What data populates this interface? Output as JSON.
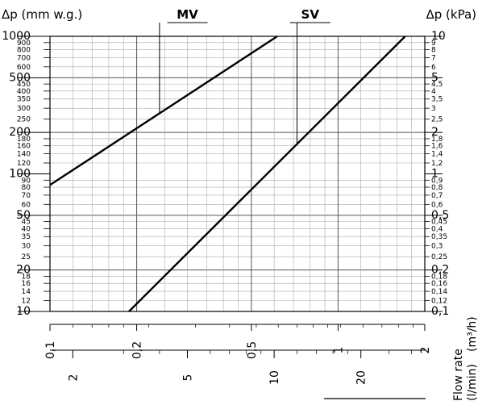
{
  "chart_data": {
    "type": "line",
    "y_left_label": "Δp (mm w.g.)",
    "y_right_label": "Δp (kPa)",
    "x_label": "Flow rate",
    "x_unit_top": "(m³/h)",
    "x_unit_bottom": "(l/min)",
    "y_scale": "log",
    "x_scale": "log",
    "y_left_range": [
      10,
      1000
    ],
    "y_right_range": [
      0.1,
      10
    ],
    "x_range_m3h": [
      0.1,
      2
    ],
    "grid": true,
    "y_left_major_ticks": [
      {
        "v": 1000,
        "t": "1000"
      },
      {
        "v": 500,
        "t": "500"
      },
      {
        "v": 200,
        "t": "200"
      },
      {
        "v": 100,
        "t": "100"
      },
      {
        "v": 50,
        "t": "50"
      },
      {
        "v": 20,
        "t": "20"
      },
      {
        "v": 10,
        "t": "10"
      }
    ],
    "y_left_minor_ticks": [
      {
        "v": 900,
        "t": "900"
      },
      {
        "v": 800,
        "t": "800"
      },
      {
        "v": 700,
        "t": "700"
      },
      {
        "v": 600,
        "t": "600"
      },
      {
        "v": 450,
        "t": "450"
      },
      {
        "v": 400,
        "t": "400"
      },
      {
        "v": 350,
        "t": "350"
      },
      {
        "v": 300,
        "t": "300"
      },
      {
        "v": 250,
        "t": "250"
      },
      {
        "v": 180,
        "t": "180"
      },
      {
        "v": 160,
        "t": "160"
      },
      {
        "v": 140,
        "t": "140"
      },
      {
        "v": 120,
        "t": "120"
      },
      {
        "v": 90,
        "t": "90"
      },
      {
        "v": 80,
        "t": "80"
      },
      {
        "v": 70,
        "t": "70"
      },
      {
        "v": 60,
        "t": "60"
      },
      {
        "v": 45,
        "t": "45"
      },
      {
        "v": 40,
        "t": "40"
      },
      {
        "v": 35,
        "t": "35"
      },
      {
        "v": 30,
        "t": "30"
      },
      {
        "v": 25,
        "t": "25"
      },
      {
        "v": 18,
        "t": "18"
      },
      {
        "v": 16,
        "t": "16"
      },
      {
        "v": 14,
        "t": "14"
      },
      {
        "v": 12,
        "t": "12"
      }
    ],
    "y_right_major_ticks": [
      {
        "v": 10,
        "t": "10"
      },
      {
        "v": 5,
        "t": "5"
      },
      {
        "v": 2,
        "t": "2"
      },
      {
        "v": 1,
        "t": "1"
      },
      {
        "v": 0.5,
        "t": "0,5"
      },
      {
        "v": 0.2,
        "t": "0,2"
      },
      {
        "v": 0.1,
        "t": "0,1"
      }
    ],
    "y_right_minor_ticks": [
      {
        "v": 9,
        "t": "9"
      },
      {
        "v": 8,
        "t": "8"
      },
      {
        "v": 7,
        "t": "7"
      },
      {
        "v": 6,
        "t": "6"
      },
      {
        "v": 4.5,
        "t": "4,5"
      },
      {
        "v": 4,
        "t": "4"
      },
      {
        "v": 3.5,
        "t": "3,5"
      },
      {
        "v": 3,
        "t": "3"
      },
      {
        "v": 2.5,
        "t": "2,5"
      },
      {
        "v": 1.8,
        "t": "1,8"
      },
      {
        "v": 1.6,
        "t": "1,6"
      },
      {
        "v": 1.4,
        "t": "1,4"
      },
      {
        "v": 1.2,
        "t": "1,2"
      },
      {
        "v": 0.9,
        "t": "0,9"
      },
      {
        "v": 0.8,
        "t": "0,8"
      },
      {
        "v": 0.7,
        "t": "0,7"
      },
      {
        "v": 0.6,
        "t": "0,6"
      },
      {
        "v": 0.45,
        "t": "0,45"
      },
      {
        "v": 0.4,
        "t": "0,4"
      },
      {
        "v": 0.35,
        "t": "0,35"
      },
      {
        "v": 0.3,
        "t": "0,3"
      },
      {
        "v": 0.25,
        "t": "0,25"
      },
      {
        "v": 0.18,
        "t": "0,18"
      },
      {
        "v": 0.16,
        "t": "0,16"
      },
      {
        "v": 0.14,
        "t": "0,14"
      },
      {
        "v": 0.12,
        "t": "0,12"
      }
    ],
    "x_m3h_ticks": [
      {
        "v": 0.1,
        "t": "0,1"
      },
      {
        "v": 0.2,
        "t": "0,2"
      },
      {
        "v": 0.5,
        "t": "0,5"
      },
      {
        "v": 1,
        "t": "1"
      },
      {
        "v": 2,
        "t": "2"
      }
    ],
    "x_lmin_ticks": [
      {
        "v": 2,
        "t": "2"
      },
      {
        "v": 5,
        "t": "5"
      },
      {
        "v": 10,
        "t": "10"
      },
      {
        "v": 20,
        "t": "20"
      }
    ],
    "series": [
      {
        "name": "MV",
        "x": [
          0.1,
          0.615
        ],
        "y": [
          83,
          1000
        ],
        "label_x": 0.3,
        "callout_x": 0.24
      },
      {
        "name": "SV",
        "x": [
          0.188,
          1.71
        ],
        "y": [
          10,
          1000
        ],
        "label_x": 0.8,
        "callout_x": 0.72
      }
    ]
  }
}
